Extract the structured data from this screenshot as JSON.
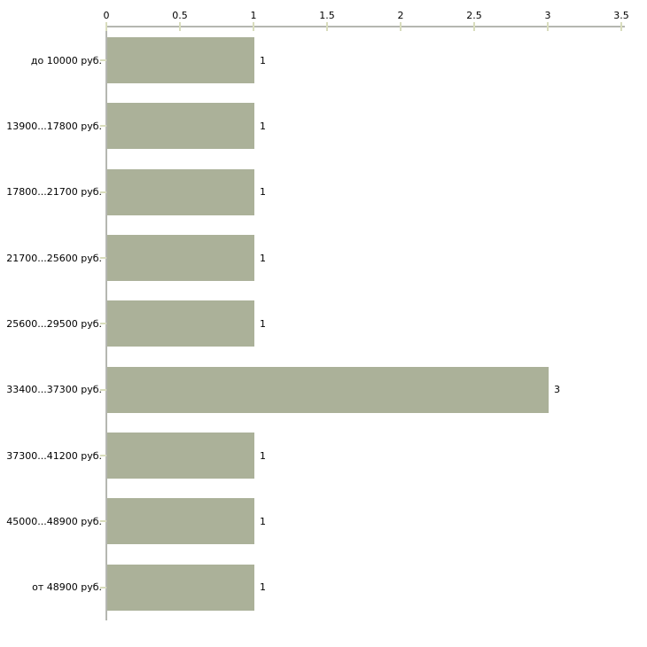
{
  "chart_data": {
    "type": "bar",
    "orientation": "horizontal",
    "title": "",
    "xlabel": "",
    "ylabel": "",
    "grid": "off",
    "legend": "none",
    "x_axis_position": "top",
    "categories": [
      "до 10000 руб.",
      "13900...17800 руб.",
      "17800...21700 руб.",
      "21700...25600 руб.",
      "25600...29500 руб.",
      "33400...37300 руб.",
      "37300...41200 руб.",
      "45000...48900 руб.",
      "от 48900 руб."
    ],
    "values": [
      1,
      1,
      1,
      1,
      1,
      3,
      1,
      1,
      1
    ],
    "value_labels": [
      "1",
      "1",
      "1",
      "1",
      "1",
      "3",
      "1",
      "1",
      "1"
    ],
    "xlim": [
      0,
      3.5
    ],
    "x_ticks": [
      0,
      0.5,
      1,
      1.5,
      2,
      2.5,
      3,
      3.5
    ],
    "x_tick_labels": [
      "0",
      "0.5",
      "1",
      "1.5",
      "2",
      "2.5",
      "3",
      "3.5"
    ],
    "colors": {
      "bar": "#abb199",
      "axis_line": "#b5b7b1",
      "tick": "#d9ddbd",
      "text": "#000000",
      "background": "#ffffff"
    }
  }
}
